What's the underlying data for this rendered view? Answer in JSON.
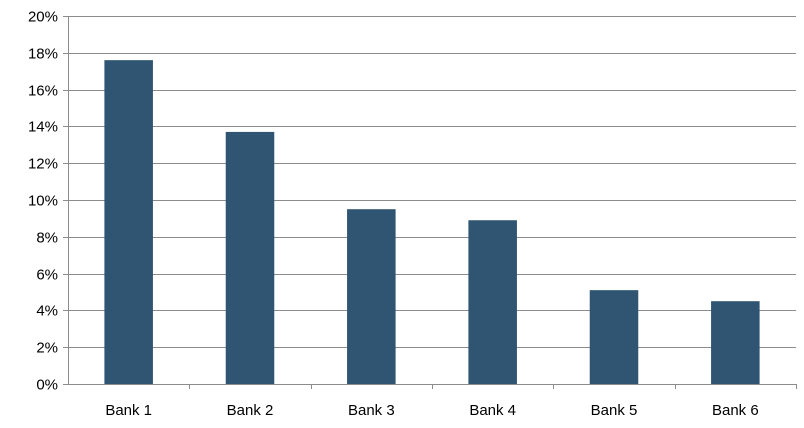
{
  "chart_data": {
    "type": "bar",
    "categories": [
      "Bank 1",
      "Bank 2",
      "Bank 3",
      "Bank 4",
      "Bank 5",
      "Bank 6"
    ],
    "values": [
      17.6,
      13.7,
      9.5,
      8.9,
      5.1,
      4.5
    ],
    "value_unit": "%",
    "ylim": [
      0,
      20
    ],
    "ytick_step": 2,
    "ytick_labels": [
      "0%",
      "2%",
      "4%",
      "6%",
      "8%",
      "10%",
      "12%",
      "14%",
      "16%",
      "18%",
      "20%"
    ],
    "grid": true,
    "legend": "none",
    "title": "",
    "xlabel": "",
    "ylabel": "",
    "bar_color": "#2f5572"
  }
}
